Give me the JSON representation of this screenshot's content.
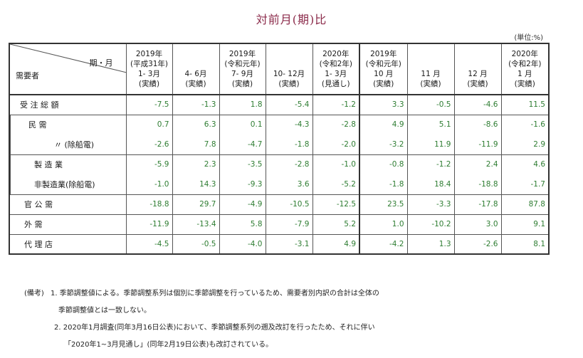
{
  "title": "対前月(期)比",
  "unit": "(単位:%)",
  "corner": {
    "period_label": "期・月",
    "demand_label": "需要者"
  },
  "columns": [
    {
      "lines": [
        "2019年",
        "(平成31年)",
        "1- 3月",
        "(実績)"
      ]
    },
    {
      "lines": [
        "",
        "",
        "4- 6月",
        "(実績)"
      ]
    },
    {
      "lines": [
        "2019年",
        "(令和元年)",
        "7- 9月",
        "(実績)"
      ]
    },
    {
      "lines": [
        "",
        "",
        "10- 12月",
        "(実績)"
      ]
    },
    {
      "lines": [
        "2020年",
        "(令和2年)",
        "1- 3月",
        "(見通し)"
      ]
    },
    {
      "lines": [
        "2019年",
        "(令和元年)",
        "10 月",
        "(実績)"
      ]
    },
    {
      "lines": [
        "",
        "",
        "11 月",
        "(実績)"
      ]
    },
    {
      "lines": [
        "",
        "",
        "12 月",
        "(実績)"
      ]
    },
    {
      "lines": [
        "2020年",
        "(令和2年)",
        "1 月",
        "(実績)"
      ]
    }
  ],
  "rows": [
    {
      "label": "受 注 総 額",
      "values": [
        "-7.5",
        "-1.3",
        "1.8",
        "-5.4",
        "-1.2",
        "3.3",
        "-0.5",
        "-4.6",
        "11.5"
      ]
    },
    {
      "label": "民 需",
      "values": [
        "0.7",
        "6.3",
        "0.1",
        "-4.3",
        "-2.8",
        "4.9",
        "5.1",
        "-8.6",
        "-1.6"
      ]
    },
    {
      "label": "〃 (除船電)",
      "values": [
        "-2.6",
        "7.8",
        "-4.7",
        "-1.8",
        "-2.0",
        "-3.2",
        "11.9",
        "-11.9",
        "2.9"
      ]
    },
    {
      "label": "製 造 業",
      "values": [
        "-5.9",
        "2.3",
        "-3.5",
        "-2.8",
        "-1.0",
        "-0.8",
        "-1.2",
        "2.4",
        "4.6"
      ]
    },
    {
      "label": "非製造業(除船電)",
      "values": [
        "-1.0",
        "14.3",
        "-9.3",
        "3.6",
        "-5.2",
        "-1.8",
        "18.4",
        "-18.8",
        "-1.7"
      ]
    },
    {
      "label": "官 公 需",
      "values": [
        "-18.8",
        "29.7",
        "-4.9",
        "-10.5",
        "-12.5",
        "23.5",
        "-3.3",
        "-17.8",
        "87.8"
      ]
    },
    {
      "label": "外 需",
      "values": [
        "-11.9",
        "-13.4",
        "5.8",
        "-7.9",
        "5.2",
        "1.0",
        "-10.2",
        "3.0",
        "9.1"
      ]
    },
    {
      "label": "代 理 店",
      "values": [
        "-4.5",
        "-0.5",
        "-4.0",
        "-3.1",
        "4.9",
        "-4.2",
        "1.3",
        "-2.6",
        "8.1"
      ]
    }
  ],
  "notes": {
    "prefix": "(備考)",
    "n1a": "1. 季節調整値による。季節調整系列は個別に季節調整を行っているため、需要者別内訳の合計は全体の",
    "n1b": "季節調整値とは一致しない。",
    "n2a": "2. 2020年1月調査(同年3月16日公表)において、季節調整系列の遡及改訂を行ったため、それに伴い",
    "n2b": "「2020年1~3月見通し」(同年2月19日公表)も改訂されている。"
  }
}
